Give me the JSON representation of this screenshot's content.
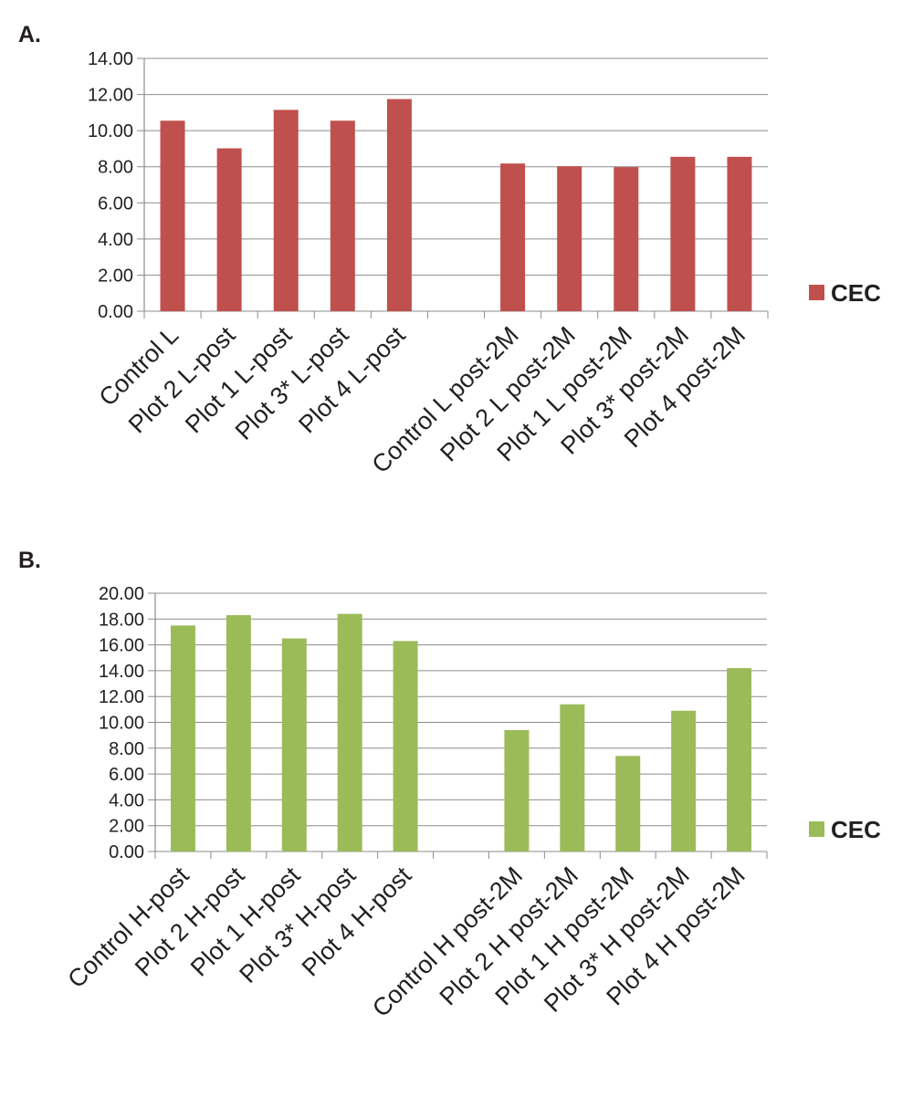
{
  "panels": [
    {
      "label": "A."
    },
    {
      "label": "B."
    }
  ],
  "chart_data": [
    {
      "type": "bar",
      "title": "",
      "xlabel": "",
      "ylabel": "",
      "ylim": [
        0,
        14
      ],
      "yticks": [
        "0.00",
        "2.00",
        "4.00",
        "6.00",
        "8.00",
        "10.00",
        "12.00",
        "14.00"
      ],
      "categories": [
        "Control L",
        "Plot 2 L-post",
        "Plot 1 L-post",
        "Plot 3* L-post",
        "Plot 4 L-post",
        "",
        "Control L post-2M",
        "Plot 2 L post-2M",
        "Plot 1 L post-2M",
        "Plot 3* post-2M",
        "Plot 4 post-2M"
      ],
      "series": [
        {
          "name": "CEC",
          "color": "#c0504d",
          "values": [
            10.55,
            9.02,
            11.15,
            10.55,
            11.75,
            null,
            8.18,
            8.03,
            7.98,
            8.55,
            8.55
          ]
        }
      ],
      "grid": true,
      "legend": "right"
    },
    {
      "type": "bar",
      "title": "",
      "xlabel": "",
      "ylabel": "",
      "ylim": [
        0,
        20
      ],
      "yticks": [
        "0.00",
        "2.00",
        "4.00",
        "6.00",
        "8.00",
        "10.00",
        "12.00",
        "14.00",
        "16.00",
        "18.00",
        "20.00"
      ],
      "categories": [
        "Control H-post",
        "Plot 2 H-post",
        "Plot 1 H-post",
        "Plot 3* H-post",
        "Plot 4 H-post",
        "",
        "Control H post-2M",
        "Plot 2 H post-2M",
        "Plot 1 H post-2M",
        "Plot 3* H post-2M",
        "Plot 4 H post-2M"
      ],
      "series": [
        {
          "name": "CEC",
          "color": "#9bbb59",
          "values": [
            17.5,
            18.3,
            16.5,
            18.4,
            16.3,
            null,
            9.4,
            11.4,
            7.4,
            10.9,
            14.2
          ]
        }
      ],
      "grid": true,
      "legend": "right"
    }
  ]
}
